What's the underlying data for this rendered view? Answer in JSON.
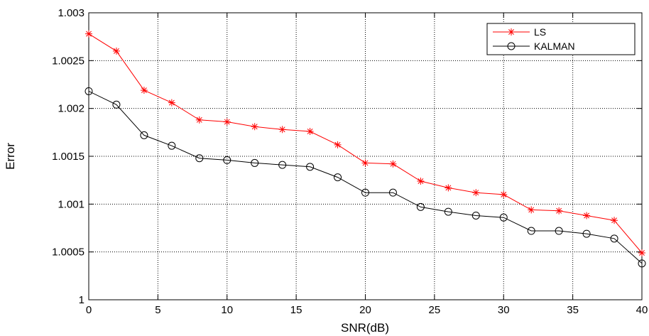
{
  "chart_data": {
    "type": "line",
    "title": "",
    "xlabel": "SNR(dB)",
    "ylabel": "Error",
    "xlim": [
      0,
      40
    ],
    "ylim": [
      1,
      1.003
    ],
    "xticks": [
      0,
      5,
      10,
      15,
      20,
      25,
      30,
      35,
      40
    ],
    "xtick_labels": [
      "0",
      "5",
      "10",
      "15",
      "20",
      "25",
      "30",
      "35",
      "40"
    ],
    "yticks": [
      1,
      1.0005,
      1.001,
      1.0015,
      1.002,
      1.0025,
      1.003
    ],
    "ytick_labels": [
      "1",
      "1.0005",
      "1.001",
      "1.0015",
      "1.002",
      "1.0025",
      "1.003"
    ],
    "grid": true,
    "legend_position": "top-right",
    "x": [
      0,
      2,
      4,
      6,
      8,
      10,
      12,
      14,
      16,
      18,
      20,
      22,
      24,
      26,
      28,
      30,
      32,
      34,
      36,
      38,
      40
    ],
    "series": [
      {
        "name": "LS",
        "color": "#ff0000",
        "marker": "asterisk",
        "values": [
          1.00278,
          1.0026,
          1.00219,
          1.00206,
          1.00188,
          1.00186,
          1.00181,
          1.00178,
          1.00176,
          1.00162,
          1.00143,
          1.00142,
          1.00124,
          1.00117,
          1.00112,
          1.0011,
          1.00094,
          1.00093,
          1.00088,
          1.00083,
          1.00049
        ]
      },
      {
        "name": "KALMAN",
        "color": "#000000",
        "marker": "circle",
        "values": [
          1.00218,
          1.00204,
          1.00172,
          1.00161,
          1.00148,
          1.00146,
          1.00143,
          1.00141,
          1.00139,
          1.00128,
          1.00112,
          1.00112,
          1.00097,
          1.00092,
          1.00088,
          1.00086,
          1.00072,
          1.00072,
          1.00069,
          1.00064,
          1.00038
        ]
      }
    ]
  }
}
